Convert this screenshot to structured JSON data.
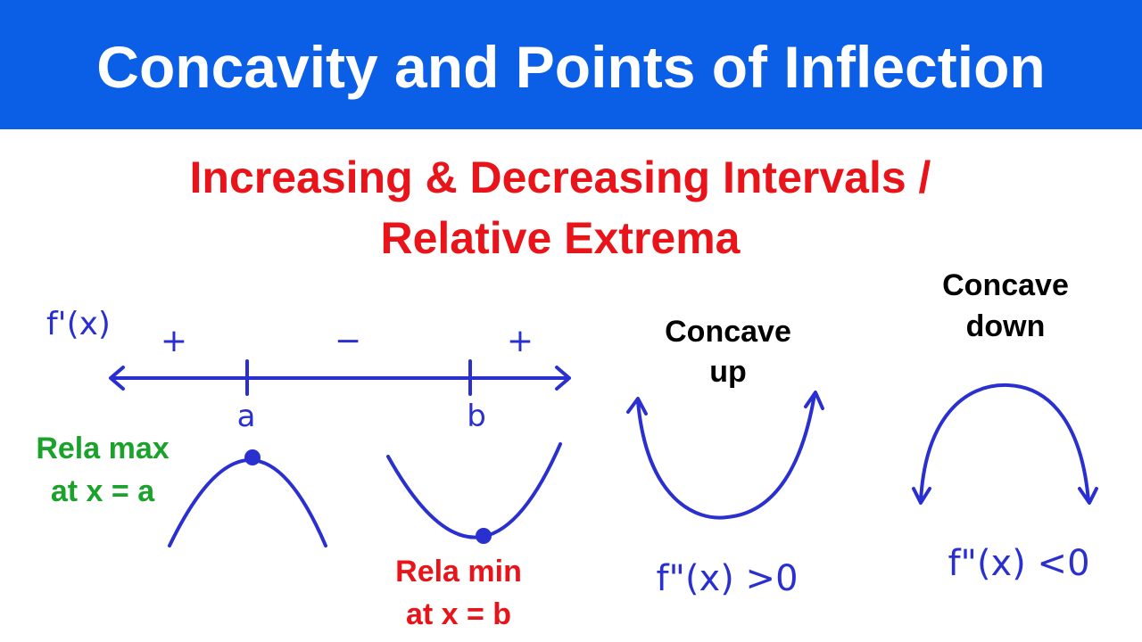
{
  "header": {
    "title": "Concavity and Points of Inflection"
  },
  "subtitle": {
    "lines": [
      "Increasing & Decreasing Intervals /",
      "Relative Extrema"
    ]
  },
  "number_line": {
    "function_label": "f'(x)",
    "signs": [
      "+",
      "−",
      "+"
    ],
    "points": [
      "a",
      "b"
    ]
  },
  "extrema": {
    "max": [
      "Rela max",
      "at x = a"
    ],
    "min": [
      "Rela min",
      "at x = b"
    ]
  },
  "concavity": {
    "up": {
      "label": [
        "Concave",
        "up"
      ],
      "condition": "f\"(x) >0"
    },
    "down": {
      "label": [
        "Concave",
        "down"
      ],
      "condition": "f\"(x) <0"
    }
  }
}
